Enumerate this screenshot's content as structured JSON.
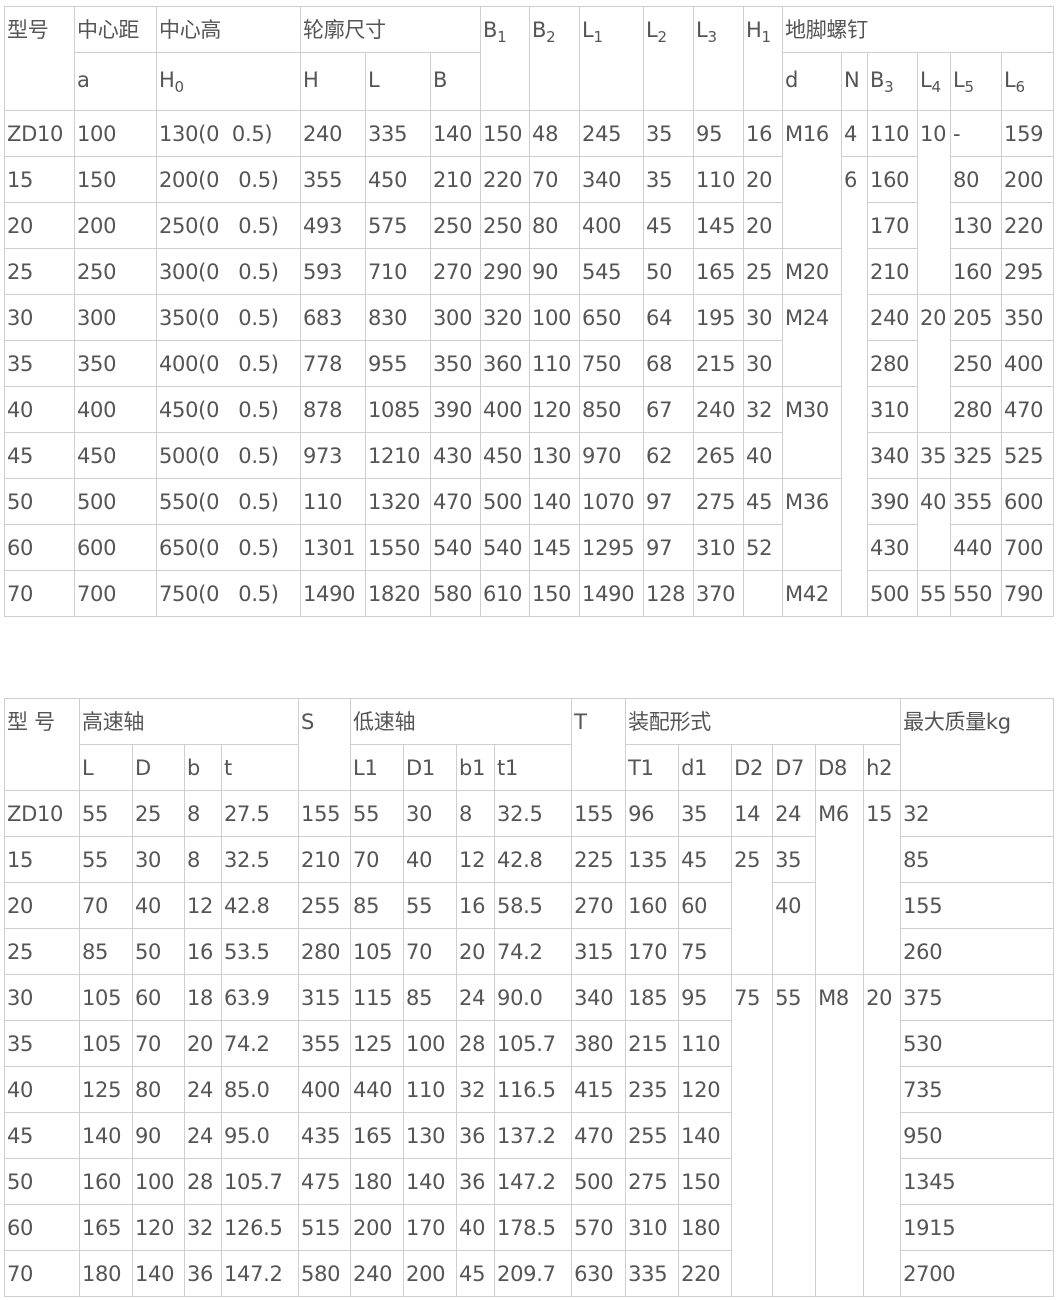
{
  "table1": {
    "header_row1": [
      {
        "text": "型号"
      },
      {
        "text": "中心距"
      },
      {
        "text": "中心高"
      },
      {
        "text": "轮廓尺寸"
      },
      {
        "text": "B",
        "sub": "1"
      },
      {
        "text": "B",
        "sub": "2"
      },
      {
        "text": "L",
        "sub": "1"
      },
      {
        "text": "L",
        "sub": "2"
      },
      {
        "text": "L",
        "sub": "3"
      },
      {
        "text": "H",
        "sub": "1"
      },
      {
        "text": "地脚螺钉"
      }
    ],
    "header_row2": [
      {
        "text": "a"
      },
      {
        "text": "H",
        "sub": "0"
      },
      {
        "text": "H"
      },
      {
        "text": "L"
      },
      {
        "text": "B"
      },
      {
        "text": "d"
      },
      {
        "text": "N"
      },
      {
        "text": "B",
        "sub": "3"
      },
      {
        "text": "L",
        "sub": "4"
      },
      {
        "text": "L",
        "sub": "5"
      },
      {
        "text": "L",
        "sub": "6"
      }
    ],
    "rows": [
      [
        "ZD10",
        "100",
        "130(0  0.5)",
        "240",
        "335",
        "140",
        "150",
        "48",
        "245",
        "35",
        "95",
        "16",
        "M16",
        "4",
        "110",
        "10",
        "-",
        "159"
      ],
      [
        "15",
        "150",
        "200(0   0.5)",
        "355",
        "450",
        "210",
        "220",
        "70",
        "340",
        "35",
        "110",
        "20",
        null,
        "6",
        "160",
        null,
        "80",
        "200"
      ],
      [
        "20",
        "200",
        "250(0   0.5)",
        "493",
        "575",
        "250",
        "250",
        "80",
        "400",
        "45",
        "145",
        "20",
        null,
        null,
        "170",
        null,
        "130",
        "220"
      ],
      [
        "25",
        "250",
        "300(0   0.5)",
        "593",
        "710",
        "270",
        "290",
        "90",
        "545",
        "50",
        "165",
        "25",
        "M20",
        null,
        "210",
        null,
        "160",
        "295"
      ],
      [
        "30",
        "300",
        "350(0   0.5)",
        "683",
        "830",
        "300",
        "320",
        "100",
        "650",
        "64",
        "195",
        "30",
        "M24",
        null,
        "240",
        "20",
        "205",
        "350"
      ],
      [
        "35",
        "350",
        "400(0   0.5)",
        "778",
        "955",
        "350",
        "360",
        "110",
        "750",
        "68",
        "215",
        "30",
        null,
        null,
        "280",
        null,
        "250",
        "400"
      ],
      [
        "40",
        "400",
        "450(0   0.5)",
        "878",
        "1085",
        "390",
        "400",
        "120",
        "850",
        "67",
        "240",
        "32",
        "M30",
        null,
        "310",
        null,
        "280",
        "470"
      ],
      [
        "45",
        "450",
        "500(0   0.5)",
        "973",
        "1210",
        "430",
        "450",
        "130",
        "970",
        "62",
        "265",
        "40",
        null,
        null,
        "340",
        "35",
        "325",
        "525"
      ],
      [
        "50",
        "500",
        "550(0   0.5)",
        "110",
        "1320",
        "470",
        "500",
        "140",
        "1070",
        "97",
        "275",
        "45",
        "M36",
        null,
        "390",
        "40",
        "355",
        "600"
      ],
      [
        "60",
        "600",
        "650(0   0.5)",
        "1301",
        "1550",
        "540",
        "540",
        "145",
        "1295",
        "97",
        "310",
        "52",
        null,
        null,
        "430",
        null,
        "440",
        "700"
      ],
      [
        "70",
        "700",
        "750(0   0.5)",
        "1490",
        "1820",
        "580",
        "610",
        "150",
        "1490",
        "128",
        "370",
        "",
        "M42",
        null,
        "500",
        "55",
        "550",
        "790"
      ]
    ]
  },
  "table2": {
    "header_row1": [
      {
        "text": "型 号"
      },
      {
        "text": "高速轴"
      },
      {
        "text": "S"
      },
      {
        "text": "低速轴"
      },
      {
        "text": "T"
      },
      {
        "text": "装配形式"
      },
      {
        "text": "最大质量kg"
      }
    ],
    "header_row2": [
      {
        "text": "L"
      },
      {
        "text": "D"
      },
      {
        "text": "b"
      },
      {
        "text": "t"
      },
      {
        "text": "L1"
      },
      {
        "text": "D1"
      },
      {
        "text": "b1"
      },
      {
        "text": "t1"
      },
      {
        "text": "T1"
      },
      {
        "text": "d1"
      },
      {
        "text": "D2"
      },
      {
        "text": "D7"
      },
      {
        "text": "D8"
      },
      {
        "text": "h2"
      }
    ],
    "rows": [
      [
        "ZD10",
        "55",
        "25",
        "8",
        "27.5",
        "155",
        "55",
        "30",
        "8",
        "32.5",
        "155",
        "96",
        "35",
        "14",
        "24",
        "M6",
        "15",
        "32"
      ],
      [
        "15",
        "55",
        "30",
        "8",
        "32.5",
        "210",
        "70",
        "40",
        "12",
        "42.8",
        "225",
        "135",
        "45",
        "25",
        "35",
        null,
        null,
        "85"
      ],
      [
        "20",
        "70",
        "40",
        "12",
        "42.8",
        "255",
        "85",
        "55",
        "16",
        "58.5",
        "270",
        "160",
        "60",
        null,
        "40",
        null,
        null,
        "155"
      ],
      [
        "25",
        "85",
        "50",
        "16",
        "53.5",
        "280",
        "105",
        "70",
        "20",
        "74.2",
        "315",
        "170",
        "75",
        null,
        null,
        null,
        null,
        "260"
      ],
      [
        "30",
        "105",
        "60",
        "18",
        "63.9",
        "315",
        "115",
        "85",
        "24",
        "90.0",
        "340",
        "185",
        "95",
        "75",
        "55",
        "M8",
        "20",
        "375"
      ],
      [
        "35",
        "105",
        "70",
        "20",
        "74.2",
        "355",
        "125",
        "100",
        "28",
        "105.7",
        "380",
        "215",
        "110",
        null,
        null,
        null,
        null,
        "530"
      ],
      [
        "40",
        "125",
        "80",
        "24",
        "85.0",
        "400",
        "440",
        "110",
        "32",
        "116.5",
        "415",
        "235",
        "120",
        null,
        null,
        null,
        null,
        "735"
      ],
      [
        "45",
        "140",
        "90",
        "24",
        "95.0",
        "435",
        "165",
        "130",
        "36",
        "137.2",
        "470",
        "255",
        "140",
        null,
        null,
        null,
        null,
        "950"
      ],
      [
        "50",
        "160",
        "100",
        "28",
        "105.7",
        "475",
        "180",
        "140",
        "36",
        "147.2",
        "500",
        "275",
        "150",
        null,
        null,
        null,
        null,
        "1345"
      ],
      [
        "60",
        "165",
        "120",
        "32",
        "126.5",
        "515",
        "200",
        "170",
        "40",
        "178.5",
        "570",
        "310",
        "180",
        null,
        null,
        null,
        null,
        "1915"
      ],
      [
        "70",
        "180",
        "140",
        "36",
        "147.2",
        "580",
        "240",
        "200",
        "45",
        "209.7",
        "630",
        "335",
        "220",
        null,
        null,
        null,
        null,
        "2700"
      ]
    ]
  }
}
